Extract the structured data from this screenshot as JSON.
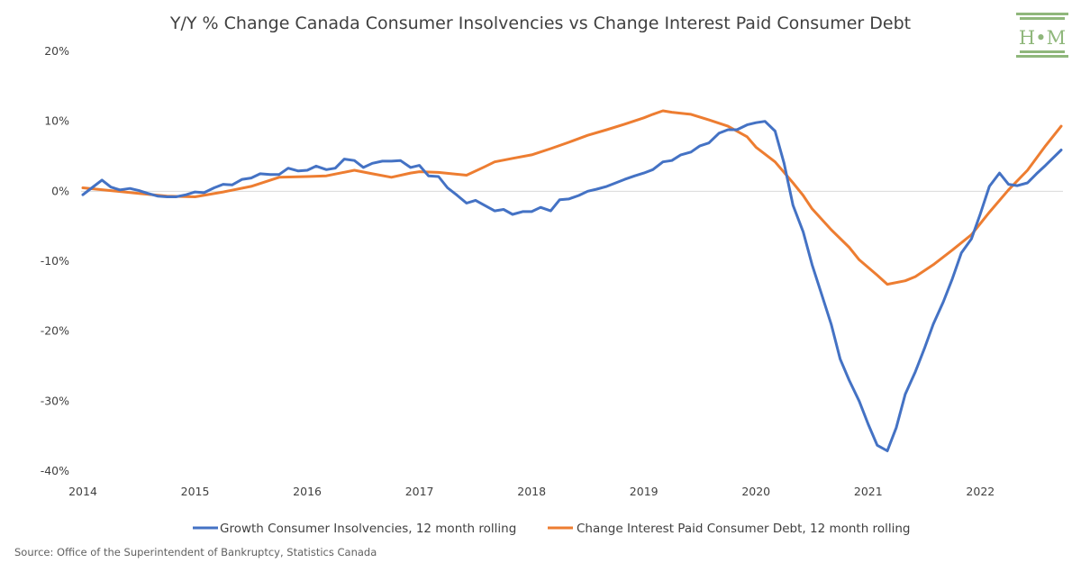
{
  "chart_data": {
    "type": "line",
    "title": "Y/Y % Change Canada Consumer Insolvencies vs Change Interest Paid Consumer Debt",
    "x_ticks": [
      "2014",
      "2015",
      "2016",
      "2017",
      "2018",
      "2019",
      "2020",
      "2021",
      "2022"
    ],
    "y_ticks": [
      "20%",
      "10%",
      "0%",
      "-10%",
      "-20%",
      "-30%",
      "-40%"
    ],
    "xlim": [
      2014.0,
      2022.72
    ],
    "ylim": [
      -40,
      20
    ],
    "grid": "zero-line-only",
    "legend_position": "bottom",
    "series": [
      {
        "name": "Growth Consumer Insolvencies, 12 month rolling",
        "color": "#4472c4",
        "points": [
          [
            2014.0,
            -0.5
          ],
          [
            2014.08,
            0.5
          ],
          [
            2014.17,
            1.6
          ],
          [
            2014.25,
            0.6
          ],
          [
            2014.33,
            0.2
          ],
          [
            2014.42,
            0.4
          ],
          [
            2014.5,
            0.1
          ],
          [
            2014.58,
            -0.3
          ],
          [
            2014.67,
            -0.7
          ],
          [
            2014.75,
            -0.8
          ],
          [
            2014.83,
            -0.8
          ],
          [
            2014.92,
            -0.5
          ],
          [
            2015.0,
            -0.1
          ],
          [
            2015.08,
            -0.2
          ],
          [
            2015.17,
            0.5
          ],
          [
            2015.25,
            1.0
          ],
          [
            2015.33,
            0.9
          ],
          [
            2015.42,
            1.7
          ],
          [
            2015.5,
            1.9
          ],
          [
            2015.58,
            2.5
          ],
          [
            2015.67,
            2.4
          ],
          [
            2015.75,
            2.4
          ],
          [
            2015.83,
            3.3
          ],
          [
            2015.92,
            2.9
          ],
          [
            2016.0,
            3.0
          ],
          [
            2016.08,
            3.6
          ],
          [
            2016.17,
            3.1
          ],
          [
            2016.25,
            3.3
          ],
          [
            2016.33,
            4.6
          ],
          [
            2016.42,
            4.4
          ],
          [
            2016.5,
            3.4
          ],
          [
            2016.58,
            4.0
          ],
          [
            2016.67,
            4.3
          ],
          [
            2016.75,
            4.3
          ],
          [
            2016.83,
            4.4
          ],
          [
            2016.92,
            3.4
          ],
          [
            2017.0,
            3.7
          ],
          [
            2017.08,
            2.2
          ],
          [
            2017.17,
            2.1
          ],
          [
            2017.25,
            0.5
          ],
          [
            2017.33,
            -0.5
          ],
          [
            2017.42,
            -1.7
          ],
          [
            2017.5,
            -1.3
          ],
          [
            2017.58,
            -2.0
          ],
          [
            2017.67,
            -2.8
          ],
          [
            2017.75,
            -2.6
          ],
          [
            2017.83,
            -3.3
          ],
          [
            2017.92,
            -2.9
          ],
          [
            2018.0,
            -2.9
          ],
          [
            2018.08,
            -2.3
          ],
          [
            2018.17,
            -2.8
          ],
          [
            2018.25,
            -1.2
          ],
          [
            2018.33,
            -1.1
          ],
          [
            2018.42,
            -0.6
          ],
          [
            2018.5,
            0.0
          ],
          [
            2018.58,
            0.3
          ],
          [
            2018.67,
            0.7
          ],
          [
            2018.75,
            1.2
          ],
          [
            2018.83,
            1.7
          ],
          [
            2018.92,
            2.2
          ],
          [
            2019.0,
            2.6
          ],
          [
            2019.08,
            3.1
          ],
          [
            2019.17,
            4.2
          ],
          [
            2019.25,
            4.4
          ],
          [
            2019.33,
            5.2
          ],
          [
            2019.42,
            5.6
          ],
          [
            2019.5,
            6.5
          ],
          [
            2019.58,
            6.9
          ],
          [
            2019.67,
            8.3
          ],
          [
            2019.75,
            8.8
          ],
          [
            2019.83,
            8.8
          ],
          [
            2019.92,
            9.5
          ],
          [
            2020.0,
            9.8
          ],
          [
            2020.08,
            10.0
          ],
          [
            2020.17,
            8.6
          ],
          [
            2020.25,
            4.0
          ],
          [
            2020.33,
            -2.0
          ],
          [
            2020.42,
            -5.8
          ],
          [
            2020.5,
            -10.5
          ],
          [
            2020.58,
            -14.5
          ],
          [
            2020.67,
            -19.0
          ],
          [
            2020.75,
            -24.0
          ],
          [
            2020.83,
            -27.0
          ],
          [
            2020.92,
            -30.0
          ],
          [
            2021.0,
            -33.3
          ],
          [
            2021.08,
            -36.3
          ],
          [
            2021.17,
            -37.1
          ],
          [
            2021.25,
            -33.8
          ],
          [
            2021.33,
            -29.0
          ],
          [
            2021.42,
            -25.8
          ],
          [
            2021.5,
            -22.5
          ],
          [
            2021.58,
            -19.0
          ],
          [
            2021.67,
            -15.8
          ],
          [
            2021.75,
            -12.5
          ],
          [
            2021.83,
            -8.8
          ],
          [
            2021.92,
            -6.8
          ],
          [
            2022.0,
            -3.2
          ],
          [
            2022.08,
            0.7
          ],
          [
            2022.17,
            2.6
          ],
          [
            2022.25,
            1.0
          ],
          [
            2022.33,
            0.8
          ],
          [
            2022.42,
            1.2
          ],
          [
            2022.5,
            2.5
          ],
          [
            2022.58,
            3.7
          ],
          [
            2022.72,
            5.9
          ]
        ]
      },
      {
        "name": "Change Interest Paid Consumer Debt, 12 month rolling",
        "color": "#ed7d31",
        "points": [
          [
            2014.0,
            0.5
          ],
          [
            2014.25,
            0.1
          ],
          [
            2014.5,
            -0.3
          ],
          [
            2014.75,
            -0.7
          ],
          [
            2015.0,
            -0.8
          ],
          [
            2015.25,
            -0.1
          ],
          [
            2015.5,
            0.7
          ],
          [
            2015.75,
            2.0
          ],
          [
            2016.0,
            2.1
          ],
          [
            2016.17,
            2.2
          ],
          [
            2016.42,
            3.0
          ],
          [
            2016.58,
            2.5
          ],
          [
            2016.75,
            2.0
          ],
          [
            2016.92,
            2.6
          ],
          [
            2017.0,
            2.8
          ],
          [
            2017.17,
            2.7
          ],
          [
            2017.42,
            2.3
          ],
          [
            2017.58,
            3.5
          ],
          [
            2017.67,
            4.2
          ],
          [
            2017.83,
            4.7
          ],
          [
            2018.0,
            5.2
          ],
          [
            2018.17,
            6.1
          ],
          [
            2018.33,
            7.0
          ],
          [
            2018.5,
            8.0
          ],
          [
            2018.67,
            8.8
          ],
          [
            2018.83,
            9.6
          ],
          [
            2019.0,
            10.5
          ],
          [
            2019.08,
            11.0
          ],
          [
            2019.17,
            11.5
          ],
          [
            2019.25,
            11.3
          ],
          [
            2019.42,
            11.0
          ],
          [
            2019.58,
            10.2
          ],
          [
            2019.75,
            9.3
          ],
          [
            2019.92,
            7.8
          ],
          [
            2020.0,
            6.3
          ],
          [
            2020.17,
            4.2
          ],
          [
            2020.33,
            1.2
          ],
          [
            2020.42,
            -0.6
          ],
          [
            2020.5,
            -2.5
          ],
          [
            2020.67,
            -5.5
          ],
          [
            2020.83,
            -8.0
          ],
          [
            2020.92,
            -9.8
          ],
          [
            2021.08,
            -12.0
          ],
          [
            2021.17,
            -13.3
          ],
          [
            2021.33,
            -12.8
          ],
          [
            2021.42,
            -12.2
          ],
          [
            2021.58,
            -10.5
          ],
          [
            2021.75,
            -8.4
          ],
          [
            2021.92,
            -6.2
          ],
          [
            2022.08,
            -3.0
          ],
          [
            2022.25,
            0.2
          ],
          [
            2022.42,
            3.0
          ],
          [
            2022.58,
            6.5
          ],
          [
            2022.72,
            9.3
          ]
        ]
      }
    ]
  },
  "logo": {
    "text": "H•M"
  },
  "source": "Source: Office of the Superintendent of Bankruptcy, Statistics Canada"
}
